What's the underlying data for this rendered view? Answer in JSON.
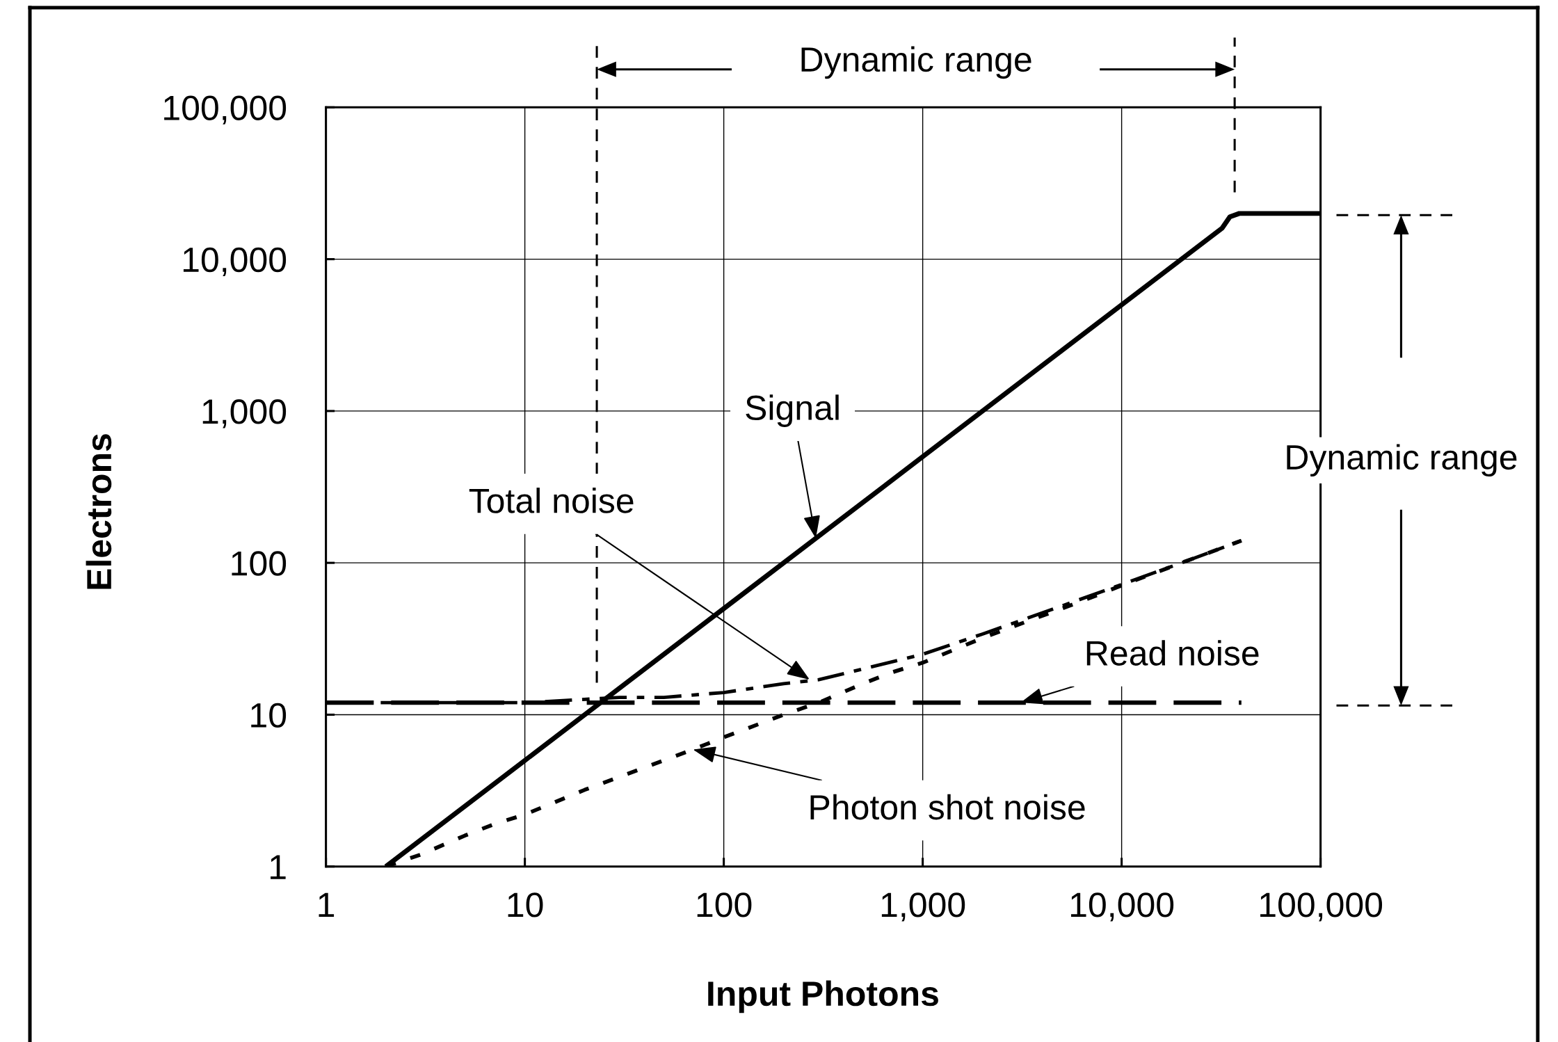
{
  "chart_data": {
    "type": "line",
    "xlabel": "Input Photons",
    "ylabel": "Electrons",
    "log": "xy",
    "xlim": [
      1,
      100000
    ],
    "ylim": [
      1,
      100000
    ],
    "xticks": [
      1,
      10,
      100,
      {
        "value": 1000,
        "label": "1,000"
      },
      {
        "value": 10000,
        "label": "10,000"
      },
      {
        "value": 100000,
        "label": "100,000"
      }
    ],
    "yticks": [
      1,
      10,
      100,
      {
        "value": 1000,
        "label": "1,000"
      },
      {
        "value": 10000,
        "label": "10,000"
      },
      {
        "value": 100000,
        "label": "100,000"
      }
    ],
    "grid": true,
    "series": [
      {
        "color": "#000000",
        "line_style": "solid",
        "x": [
          2,
          10,
          100,
          1000,
          10000,
          32000,
          35000,
          39000,
          100000
        ],
        "values": [
          1,
          5,
          50,
          500,
          5000,
          16000,
          19000,
          20000,
          20000
        ]
      },
      {
        "color": "#000000",
        "line_style": "dashdot",
        "x": [
          1,
          10,
          30,
          50,
          100,
          200,
          300,
          500,
          1000,
          2000,
          3000,
          5000,
          10000,
          20000,
          40000
        ],
        "values": [
          12,
          12,
          13,
          13,
          14,
          16,
          17,
          20,
          25,
          34,
          41,
          52,
          72,
          100,
          140
        ]
      },
      {
        "color": "#000000",
        "line_style": "dashed",
        "x": [
          1,
          40000
        ],
        "values": [
          12,
          12
        ]
      },
      {
        "color": "#000000",
        "line_style": "dotted",
        "x": [
          2,
          3,
          5,
          7,
          10,
          20,
          30,
          50,
          70,
          100,
          200,
          300,
          500,
          700,
          1000,
          2000,
          3000,
          5000,
          7000,
          10000,
          20000,
          40000
        ],
        "values": [
          1,
          1.2,
          1.6,
          1.9,
          2.2,
          3.2,
          3.9,
          5,
          5.9,
          7.1,
          10,
          12,
          16,
          19,
          22,
          32,
          39,
          50,
          59,
          71,
          100,
          140
        ]
      }
    ],
    "ref_lines": [
      {
        "axis": "x",
        "value": 23,
        "line_style": "dashed",
        "color": "#000000"
      },
      {
        "axis": "x",
        "value": 37000,
        "line_style": "dashed",
        "color": "#000000"
      }
    ],
    "annotations": [
      "Dynamic range",
      {
        "text": "Signal",
        "x": 290,
        "y": 145
      },
      "Dynamic range",
      {
        "text": "Total noise",
        "x": 270,
        "y": 17
      },
      {
        "text": "Read noise",
        "x": 3100,
        "y": 12
      },
      {
        "text": "Photon shot noise",
        "x": 70,
        "y": 5.9
      }
    ]
  }
}
